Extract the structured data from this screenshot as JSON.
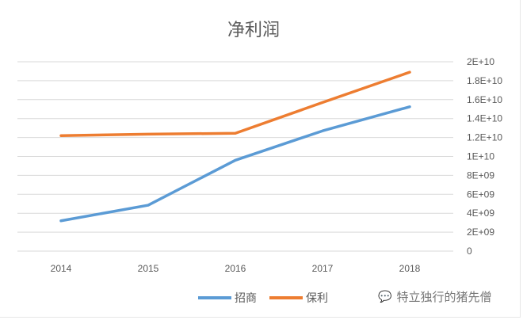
{
  "chart_data": {
    "type": "line",
    "title": "净利润",
    "categories": [
      "2014",
      "2015",
      "2016",
      "2017",
      "2018"
    ],
    "series": [
      {
        "name": "招商",
        "color": "#5b9bd5",
        "values": [
          3200000000.0,
          4850000000.0,
          9600000000.0,
          12700000000.0,
          15250000000.0
        ]
      },
      {
        "name": "保利",
        "color": "#ed7d31",
        "values": [
          12200000000.0,
          12350000000.0,
          12450000000.0,
          15700000000.0,
          18900000000.0
        ]
      }
    ],
    "ylim": [
      0,
      20000000000
    ],
    "yticks": [
      "0",
      "2E+09",
      "4E+09",
      "6E+09",
      "8E+09",
      "1E+10",
      "1.2E+10",
      "1.4E+10",
      "1.6E+10",
      "1.8E+10",
      "2E+10"
    ],
    "y_axis_side": "right",
    "grid": true,
    "legend": "bottom"
  },
  "watermark": {
    "icon": "wechat-icon",
    "text": "特立独行的猪先僧"
  }
}
